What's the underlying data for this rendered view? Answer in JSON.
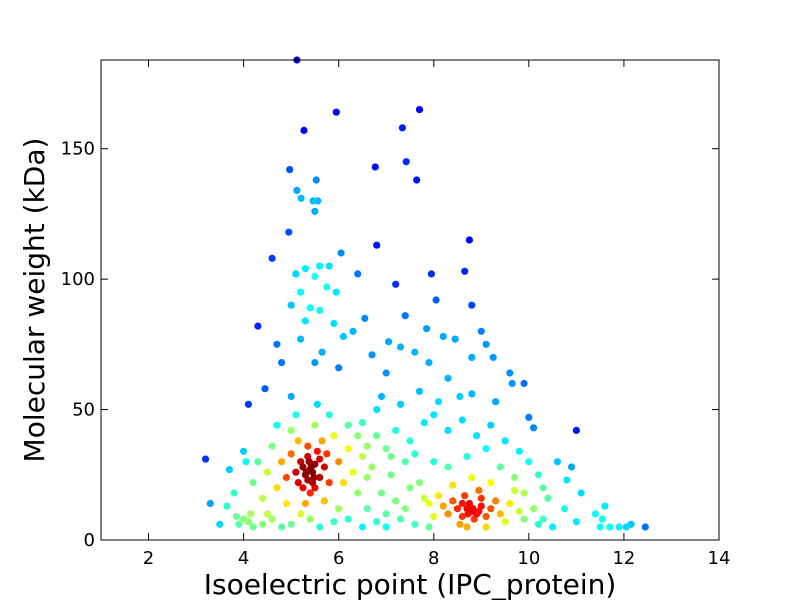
{
  "chart_data": {
    "type": "scatter",
    "title": "",
    "xlabel": "Isoelectric point (IPC_protein)",
    "ylabel": "Molecular weight (kDa)",
    "xlim": [
      1,
      14
    ],
    "ylim": [
      0,
      184
    ],
    "xticks": [
      2,
      4,
      6,
      8,
      10,
      12,
      14
    ],
    "yticks": [
      0,
      50,
      100,
      150
    ],
    "grid": false,
    "colormap": "jet",
    "color_encoding": "point density",
    "points": [
      [
        5.12,
        184
      ],
      [
        5.27,
        157
      ],
      [
        5.95,
        164
      ],
      [
        7.7,
        165
      ],
      [
        7.34,
        158
      ],
      [
        7.42,
        145
      ],
      [
        6.77,
        143
      ],
      [
        4.97,
        142
      ],
      [
        5.53,
        138
      ],
      [
        7.64,
        138
      ],
      [
        5.12,
        134
      ],
      [
        5.21,
        131
      ],
      [
        5.46,
        130
      ],
      [
        5.5,
        126
      ],
      [
        5.56,
        130
      ],
      [
        4.95,
        118
      ],
      [
        6.8,
        113
      ],
      [
        6.05,
        110
      ],
      [
        4.6,
        108
      ],
      [
        5.6,
        105
      ],
      [
        5.8,
        105
      ],
      [
        5.3,
        104
      ],
      [
        5.1,
        102
      ],
      [
        5.5,
        101
      ],
      [
        6.4,
        102
      ],
      [
        7.95,
        102
      ],
      [
        8.65,
        103
      ],
      [
        7.2,
        98
      ],
      [
        5.75,
        97
      ],
      [
        5.2,
        95
      ],
      [
        5.95,
        95
      ],
      [
        8.05,
        92
      ],
      [
        8.75,
        115
      ],
      [
        8.8,
        90
      ],
      [
        5.0,
        90
      ],
      [
        5.4,
        89
      ],
      [
        5.6,
        88
      ],
      [
        7.4,
        86
      ],
      [
        6.55,
        85
      ],
      [
        5.3,
        84
      ],
      [
        5.9,
        83
      ],
      [
        4.3,
        82
      ],
      [
        7.85,
        81
      ],
      [
        9.0,
        80
      ],
      [
        6.3,
        80
      ],
      [
        7.05,
        76
      ],
      [
        7.3,
        74
      ],
      [
        8.2,
        78
      ],
      [
        8.45,
        77
      ],
      [
        9.1,
        75
      ],
      [
        6.1,
        78
      ],
      [
        4.7,
        75
      ],
      [
        5.2,
        77
      ],
      [
        5.65,
        72
      ],
      [
        6.7,
        71
      ],
      [
        7.6,
        72
      ],
      [
        8.8,
        70
      ],
      [
        9.25,
        70
      ],
      [
        4.8,
        68
      ],
      [
        5.5,
        68
      ],
      [
        6.0,
        66
      ],
      [
        7.0,
        64
      ],
      [
        7.9,
        68
      ],
      [
        8.3,
        62
      ],
      [
        9.6,
        64
      ],
      [
        9.65,
        60
      ],
      [
        9.9,
        60
      ],
      [
        4.45,
        58
      ],
      [
        4.1,
        52
      ],
      [
        6.9,
        55
      ],
      [
        7.7,
        57
      ],
      [
        8.55,
        55
      ],
      [
        9.3,
        53
      ],
      [
        10.0,
        47
      ],
      [
        10.1,
        43
      ],
      [
        11.0,
        42
      ],
      [
        3.2,
        31
      ],
      [
        3.3,
        14
      ],
      [
        3.7,
        27
      ],
      [
        4.0,
        34
      ],
      [
        4.05,
        30
      ],
      [
        3.5,
        6
      ],
      [
        3.8,
        18
      ],
      [
        3.65,
        13
      ],
      [
        10.6,
        30
      ],
      [
        10.8,
        23
      ],
      [
        11.1,
        18
      ],
      [
        10.9,
        28
      ],
      [
        11.4,
        10
      ],
      [
        11.6,
        13
      ],
      [
        11.55,
        8
      ],
      [
        11.7,
        5
      ],
      [
        11.5,
        5
      ],
      [
        11.9,
        5
      ],
      [
        12.05,
        5
      ],
      [
        12.15,
        6
      ],
      [
        12.45,
        5
      ],
      [
        11.0,
        7
      ],
      [
        10.75,
        12
      ],
      [
        10.4,
        16
      ],
      [
        10.2,
        25
      ],
      [
        10.5,
        5
      ],
      [
        10.3,
        8
      ],
      [
        5.4,
        27
      ],
      [
        5.3,
        25
      ],
      [
        5.5,
        29
      ],
      [
        5.2,
        30
      ],
      [
        5.6,
        24
      ],
      [
        5.45,
        22
      ],
      [
        5.35,
        32
      ],
      [
        5.1,
        26
      ],
      [
        5.7,
        28
      ],
      [
        5.25,
        20
      ],
      [
        5.55,
        34
      ],
      [
        5.0,
        33
      ],
      [
        5.8,
        22
      ],
      [
        5.4,
        18
      ],
      [
        4.9,
        24
      ],
      [
        6.0,
        30
      ],
      [
        5.15,
        38
      ],
      [
        5.65,
        38
      ],
      [
        4.8,
        30
      ],
      [
        6.1,
        22
      ],
      [
        5.3,
        14
      ],
      [
        5.7,
        15
      ],
      [
        4.7,
        20
      ],
      [
        6.2,
        35
      ],
      [
        5.0,
        42
      ],
      [
        5.5,
        44
      ],
      [
        4.6,
        36
      ],
      [
        6.3,
        26
      ],
      [
        4.9,
        14
      ],
      [
        5.9,
        40
      ],
      [
        5.2,
        10
      ],
      [
        4.5,
        26
      ],
      [
        6.4,
        18
      ],
      [
        5.8,
        48
      ],
      [
        5.1,
        48
      ],
      [
        4.4,
        16
      ],
      [
        6.5,
        32
      ],
      [
        4.7,
        44
      ],
      [
        6.0,
        12
      ],
      [
        5.4,
        8
      ],
      [
        4.3,
        30
      ],
      [
        5.55,
        52
      ],
      [
        6.2,
        44
      ],
      [
        4.5,
        10
      ],
      [
        6.6,
        24
      ],
      [
        4.2,
        22
      ],
      [
        5.0,
        55
      ],
      [
        5.35,
        36
      ],
      [
        5.45,
        26
      ],
      [
        5.25,
        28
      ],
      [
        5.6,
        31
      ],
      [
        5.35,
        23
      ],
      [
        5.5,
        20
      ],
      [
        5.15,
        22
      ],
      [
        5.75,
        33
      ],
      [
        5.42,
        28
      ],
      [
        5.32,
        26
      ],
      [
        5.48,
        24
      ],
      [
        5.38,
        30
      ],
      [
        4.0,
        8
      ],
      [
        3.9,
        6
      ],
      [
        4.1,
        7
      ],
      [
        4.2,
        5
      ],
      [
        4.4,
        6
      ],
      [
        4.6,
        8
      ],
      [
        4.8,
        5
      ],
      [
        5.0,
        6
      ],
      [
        5.6,
        5
      ],
      [
        5.9,
        7
      ],
      [
        6.2,
        8
      ],
      [
        6.5,
        5
      ],
      [
        6.8,
        7
      ],
      [
        7.0,
        5
      ],
      [
        7.3,
        8
      ],
      [
        7.6,
        6
      ],
      [
        7.9,
        5
      ],
      [
        3.85,
        9
      ],
      [
        4.15,
        10
      ],
      [
        6.5,
        45
      ],
      [
        6.8,
        40
      ],
      [
        7.0,
        35
      ],
      [
        7.2,
        42
      ],
      [
        7.5,
        38
      ],
      [
        7.8,
        45
      ],
      [
        8.0,
        48
      ],
      [
        8.3,
        42
      ],
      [
        8.6,
        46
      ],
      [
        8.9,
        40
      ],
      [
        9.2,
        44
      ],
      [
        9.5,
        38
      ],
      [
        9.8,
        34
      ],
      [
        6.7,
        28
      ],
      [
        7.1,
        25
      ],
      [
        7.4,
        30
      ],
      [
        7.7,
        22
      ],
      [
        8.0,
        30
      ],
      [
        8.3,
        28
      ],
      [
        9.4,
        28
      ],
      [
        9.7,
        24
      ],
      [
        10.0,
        30
      ],
      [
        6.9,
        18
      ],
      [
        7.2,
        15
      ],
      [
        7.5,
        20
      ],
      [
        7.8,
        16
      ],
      [
        6.6,
        12
      ],
      [
        7.0,
        10
      ],
      [
        7.4,
        12
      ],
      [
        9.9,
        18
      ],
      [
        10.1,
        12
      ],
      [
        10.3,
        20
      ],
      [
        6.8,
        50
      ],
      [
        7.3,
        52
      ],
      [
        8.1,
        53
      ],
      [
        8.8,
        56
      ],
      [
        9.1,
        35
      ],
      [
        8.7,
        32
      ],
      [
        6.4,
        40
      ],
      [
        7.6,
        33
      ],
      [
        9.9,
        8
      ],
      [
        10.2,
        6
      ],
      [
        7.1,
        32
      ],
      [
        6.6,
        36
      ],
      [
        8.8,
        11
      ],
      [
        8.7,
        12
      ],
      [
        8.9,
        10
      ],
      [
        8.6,
        9
      ],
      [
        9.0,
        13
      ],
      [
        8.75,
        14
      ],
      [
        8.5,
        12
      ],
      [
        9.1,
        9
      ],
      [
        8.85,
        8
      ],
      [
        8.4,
        15
      ],
      [
        9.2,
        12
      ],
      [
        8.65,
        17
      ],
      [
        9.0,
        16
      ],
      [
        8.3,
        10
      ],
      [
        9.3,
        15
      ],
      [
        8.55,
        6
      ],
      [
        9.4,
        10
      ],
      [
        8.2,
        13
      ],
      [
        8.95,
        19
      ],
      [
        9.5,
        7
      ],
      [
        8.1,
        17
      ],
      [
        9.6,
        14
      ],
      [
        8.4,
        21
      ],
      [
        9.2,
        22
      ],
      [
        8.0,
        9
      ],
      [
        9.7,
        19
      ],
      [
        8.7,
        5
      ],
      [
        9.1,
        5
      ],
      [
        7.9,
        14
      ],
      [
        8.8,
        24
      ],
      [
        9.8,
        11
      ],
      [
        8.6,
        14
      ],
      [
        8.95,
        11
      ],
      [
        8.82,
        12
      ],
      [
        8.72,
        10
      ]
    ]
  }
}
